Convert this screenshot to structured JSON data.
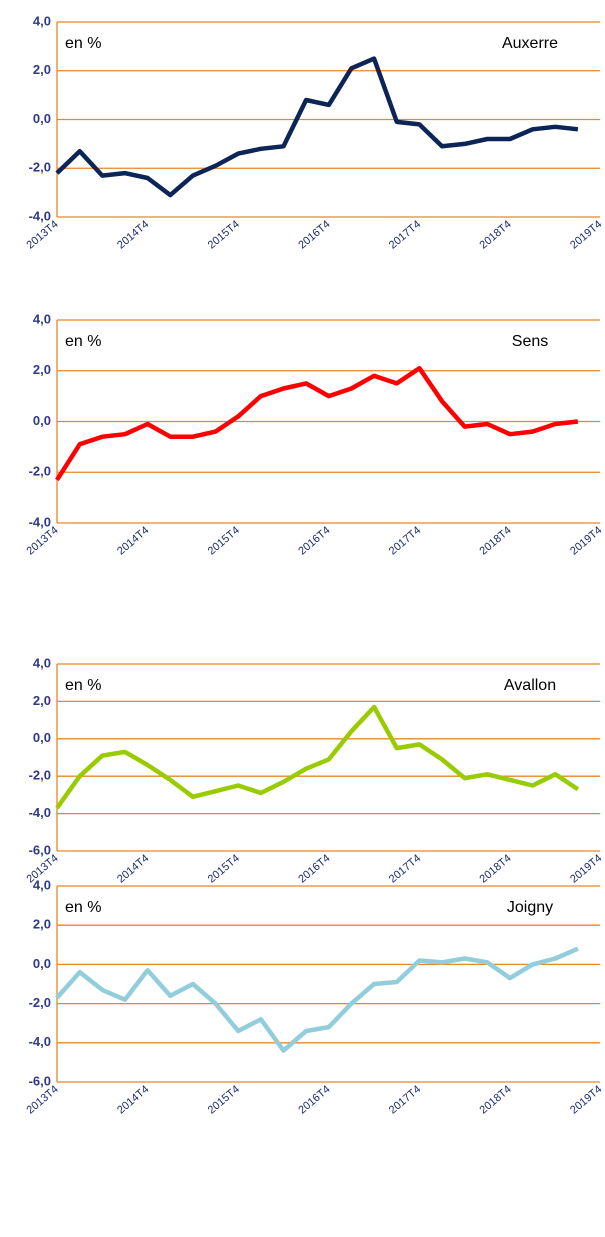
{
  "chart_data": [
    {
      "type": "line",
      "annotation": "en %",
      "grid": true,
      "categories": [
        "2013T4",
        null,
        null,
        null,
        "2014T4",
        null,
        null,
        null,
        "2015T4",
        null,
        null,
        null,
        "2016T4",
        null,
        null,
        null,
        "2017T4",
        null,
        null,
        null,
        "2018T4",
        null,
        null,
        null,
        "2019T4"
      ],
      "ylim": [
        -4,
        4
      ],
      "yticks": [
        {
          "value": -4,
          "label": "-4,0"
        },
        {
          "value": -2,
          "label": "-2,0"
        },
        {
          "value": 0,
          "label": "0,0"
        },
        {
          "value": 2,
          "label": "2,0"
        },
        {
          "value": 4,
          "label": "4,0"
        }
      ],
      "series": [
        {
          "name": "Auxerre",
          "color": "#0d2456",
          "values": [
            -2.2,
            -1.3,
            -2.3,
            -2.2,
            -2.4,
            -3.1,
            -2.3,
            -1.9,
            -1.4,
            -1.2,
            -1.1,
            0.8,
            0.6,
            2.1,
            2.5,
            -0.1,
            -0.2,
            -1.1,
            -1.0,
            -0.8,
            -0.8,
            -0.4,
            -0.3,
            -0.4,
            null
          ]
        }
      ]
    },
    {
      "type": "line",
      "annotation": "en %",
      "grid": true,
      "categories": [
        "2013T4",
        null,
        null,
        null,
        "2014T4",
        null,
        null,
        null,
        "2015T4",
        null,
        null,
        null,
        "2016T4",
        null,
        null,
        null,
        "2017T4",
        null,
        null,
        null,
        "2018T4",
        null,
        null,
        null,
        "2019T4"
      ],
      "ylim": [
        -4,
        4
      ],
      "yticks": [
        {
          "value": -4,
          "label": "-4,0"
        },
        {
          "value": -2,
          "label": "-2,0"
        },
        {
          "value": 0,
          "label": "0,0"
        },
        {
          "value": 2,
          "label": "2,0"
        },
        {
          "value": 4,
          "label": "4,0"
        }
      ],
      "series": [
        {
          "name": "Sens",
          "color": "#ff0000",
          "values": [
            -2.3,
            -0.9,
            -0.6,
            -0.5,
            -0.1,
            -0.6,
            -0.6,
            -0.4,
            0.2,
            1.0,
            1.3,
            1.5,
            1.0,
            1.3,
            1.8,
            1.5,
            2.1,
            0.8,
            -0.2,
            -0.1,
            -0.5,
            -0.4,
            -0.1,
            0.0,
            null
          ]
        }
      ]
    },
    {
      "type": "line",
      "annotation": "en %",
      "grid": true,
      "categories": [
        "2013T4",
        null,
        null,
        null,
        "2014T4",
        null,
        null,
        null,
        "2015T4",
        null,
        null,
        null,
        "2016T4",
        null,
        null,
        null,
        "2017T4",
        null,
        null,
        null,
        "2018T4",
        null,
        null,
        null,
        "2019T4"
      ],
      "ylim": [
        -6,
        4
      ],
      "yticks": [
        {
          "value": -6,
          "label": "-6,0"
        },
        {
          "value": -4,
          "label": "-4,0"
        },
        {
          "value": -2,
          "label": "-2,0"
        },
        {
          "value": 0,
          "label": "0,0"
        },
        {
          "value": 2,
          "label": "2,0"
        },
        {
          "value": 4,
          "label": "4,0"
        }
      ],
      "series": [
        {
          "name": "Avallon",
          "color": "#99cc00",
          "values": [
            -3.7,
            -2.0,
            -0.9,
            -0.7,
            -1.4,
            -2.2,
            -3.1,
            -2.8,
            -2.5,
            -2.9,
            -2.3,
            -1.6,
            -1.1,
            0.4,
            1.7,
            -0.5,
            -0.3,
            -1.1,
            -2.1,
            -1.9,
            -2.2,
            -2.5,
            -1.9,
            -2.7,
            null
          ]
        }
      ]
    },
    {
      "type": "line",
      "annotation": "en %",
      "grid": true,
      "categories": [
        "2013T4",
        null,
        null,
        null,
        "2014T4",
        null,
        null,
        null,
        "2015T4",
        null,
        null,
        null,
        "2016T4",
        null,
        null,
        null,
        "2017T4",
        null,
        null,
        null,
        "2018T4",
        null,
        null,
        null,
        "2019T4"
      ],
      "ylim": [
        -6,
        4
      ],
      "yticks": [
        {
          "value": -6,
          "label": "-6,0"
        },
        {
          "value": -4,
          "label": "-4,0"
        },
        {
          "value": -2,
          "label": "-2,0"
        },
        {
          "value": 0,
          "label": "0,0"
        },
        {
          "value": 2,
          "label": "2,0"
        },
        {
          "value": 4,
          "label": "4,0"
        }
      ],
      "series": [
        {
          "name": "Joigny",
          "color": "#92cddc",
          "values": [
            -1.7,
            -0.4,
            -1.3,
            -1.8,
            -0.3,
            -1.6,
            -1.0,
            -2.0,
            -3.4,
            -2.8,
            -4.4,
            -3.4,
            -3.2,
            -2.0,
            -1.0,
            -0.9,
            0.2,
            0.1,
            0.3,
            0.1,
            -0.7,
            0.0,
            0.3,
            0.8,
            null
          ]
        }
      ]
    }
  ]
}
